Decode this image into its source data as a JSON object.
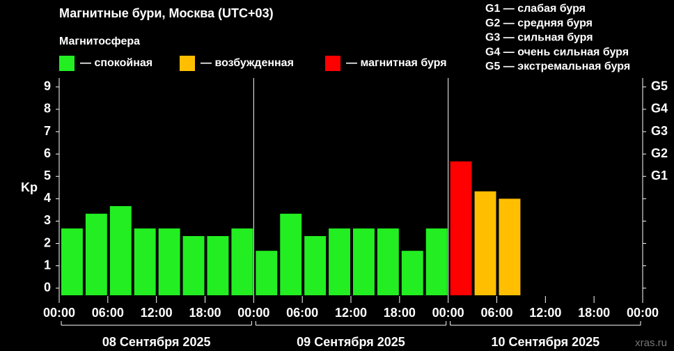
{
  "chart_data": {
    "type": "bar",
    "title": "Магнитные бури, Москва (UTC+03)",
    "subtitle": "Магнитосфера",
    "y_label": "Kp",
    "watermark": "xras.ru",
    "storm_levels": [
      "G1 — слабая буря",
      "G2 — средняя буря",
      "G3 — сильная буря",
      "G4 — очень сильная буря",
      "G5 — экстремальная буря"
    ],
    "day_labels": [
      "08 Сентября 2025",
      "09 Сентября 2025",
      "10 Сентября 2025"
    ],
    "x": [
      0,
      3,
      6,
      9,
      12,
      15,
      18,
      21,
      24,
      27,
      30,
      33,
      36,
      39,
      42,
      45,
      48,
      51,
      54,
      57,
      60,
      63,
      66,
      69
    ],
    "series": [
      {
        "name": "— спокойная",
        "color": "#22ee22",
        "values": [
          2.67,
          3.33,
          3.67,
          2.67,
          2.67,
          2.33,
          2.33,
          2.67,
          1.67,
          3.33,
          2.33,
          2.67,
          2.67,
          2.67,
          1.67,
          2.67,
          null,
          null,
          null,
          null,
          null,
          null,
          null,
          null
        ]
      },
      {
        "name": "— возбужденная",
        "color": "#ffbf00",
        "values": [
          null,
          null,
          null,
          null,
          null,
          null,
          null,
          null,
          null,
          null,
          null,
          null,
          null,
          null,
          null,
          null,
          null,
          4.33,
          4.0,
          null,
          null,
          null,
          null,
          null
        ]
      },
      {
        "name": "— магнитная буря",
        "color": "#ff0000",
        "values": [
          null,
          null,
          null,
          null,
          null,
          null,
          null,
          null,
          null,
          null,
          null,
          null,
          null,
          null,
          null,
          null,
          5.67,
          null,
          null,
          null,
          null,
          null,
          null,
          null
        ]
      }
    ],
    "xlim": [
      0,
      72
    ],
    "xticks": [
      {
        "value": 0,
        "label": "00:00"
      },
      {
        "value": 6,
        "label": "06:00"
      },
      {
        "value": 12,
        "label": "12:00"
      },
      {
        "value": 18,
        "label": "18:00"
      },
      {
        "value": 24,
        "label": "00:00"
      },
      {
        "value": 30,
        "label": "06:00"
      },
      {
        "value": 36,
        "label": "12:00"
      },
      {
        "value": 42,
        "label": "18:00"
      },
      {
        "value": 48,
        "label": "00:00"
      },
      {
        "value": 54,
        "label": "06:00"
      },
      {
        "value": 60,
        "label": "12:00"
      },
      {
        "value": 66,
        "label": "18:00"
      },
      {
        "value": 72,
        "label": "00:00"
      }
    ],
    "day_breaks": [
      24,
      48
    ],
    "ylim": [
      -0.35,
      9.4
    ],
    "yticks": [
      0,
      1,
      2,
      3,
      4,
      5,
      6,
      7,
      8,
      9
    ],
    "y2lim": [
      -0.35,
      9.4
    ],
    "y2ticks": [
      {
        "value": 5,
        "label": "G1"
      },
      {
        "value": 6,
        "label": "G2"
      },
      {
        "value": 7,
        "label": "G3"
      },
      {
        "value": 8,
        "label": "G4"
      },
      {
        "value": 9,
        "label": "G5"
      }
    ]
  }
}
